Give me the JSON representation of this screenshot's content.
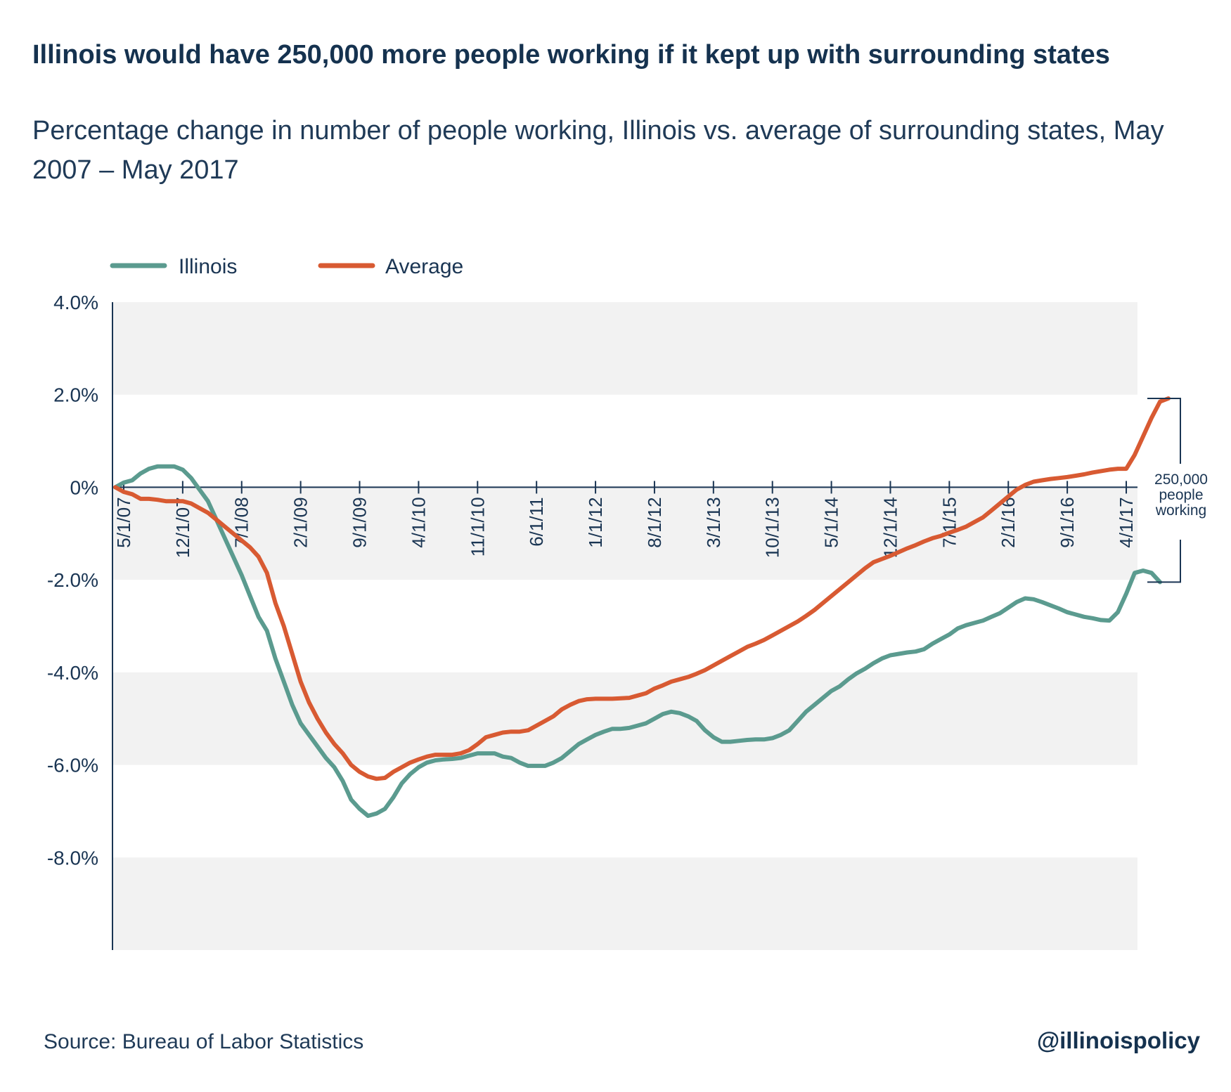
{
  "header": {
    "title": "Illinois would have 250,000 more people working if it kept up with surrounding states",
    "subtitle": "Percentage change in number of people working, Illinois vs. average of surrounding states, May 2007 – May 2017"
  },
  "footer": {
    "source": "Source: Bureau of Labor Statistics",
    "handle": "@illinoispolicy"
  },
  "colors": {
    "illinois": "#5b9b8f",
    "average": "#d85a32",
    "axis": "#1a3553",
    "band": "#f2f2f2"
  },
  "chart_data": {
    "type": "line",
    "title": "Illinois would have 250,000 more people working if it kept up with surrounding states",
    "subtitle": "Percentage change in number of people working, Illinois vs. average of surrounding states, May 2007 – May 2017",
    "xlabel": "",
    "ylabel": "",
    "ylim": [
      -10.0,
      4.0
    ],
    "y_ticks": [
      4.0,
      2.0,
      0.0,
      -2.0,
      -4.0,
      -6.0,
      -8.0
    ],
    "y_tick_labels": [
      "4.0%",
      "2.0%",
      "0%",
      "-2.0%",
      "-4.0%",
      "-6.0%",
      "-8.0%"
    ],
    "x_tick_labels": [
      "5/1/07",
      "12/1/07",
      "7/1/08",
      "2/1/09",
      "9/1/09",
      "4/1/10",
      "11/1/10",
      "6/1/11",
      "1/1/12",
      "8/1/12",
      "3/1/13",
      "10/1/13",
      "5/1/14",
      "12/1/14",
      "7/1/15",
      "2/1/16",
      "9/1/16",
      "4/1/17"
    ],
    "x_start": "4/1/07",
    "x_end": "5/1/17",
    "grid": "alternating horizontal bands",
    "legend": "top-left",
    "series": [
      {
        "name": "Illinois",
        "color": "#5b9b8f",
        "values": [
          0.0,
          0.1,
          0.15,
          0.3,
          0.4,
          0.45,
          0.45,
          0.45,
          0.38,
          0.2,
          -0.05,
          -0.3,
          -0.7,
          -1.1,
          -1.5,
          -1.9,
          -2.35,
          -2.8,
          -3.1,
          -3.7,
          -4.2,
          -4.7,
          -5.1,
          -5.35,
          -5.6,
          -5.85,
          -6.05,
          -6.35,
          -6.75,
          -6.95,
          -7.1,
          -7.05,
          -6.95,
          -6.7,
          -6.4,
          -6.2,
          -6.05,
          -5.95,
          -5.9,
          -5.88,
          -5.87,
          -5.85,
          -5.8,
          -5.75,
          -5.75,
          -5.75,
          -5.82,
          -5.85,
          -5.95,
          -6.02,
          -6.02,
          -6.02,
          -5.95,
          -5.85,
          -5.7,
          -5.55,
          -5.45,
          -5.35,
          -5.28,
          -5.22,
          -5.22,
          -5.2,
          -5.15,
          -5.1,
          -5.0,
          -4.9,
          -4.85,
          -4.88,
          -4.95,
          -5.05,
          -5.25,
          -5.4,
          -5.5,
          -5.5,
          -5.48,
          -5.46,
          -5.45,
          -5.45,
          -5.42,
          -5.35,
          -5.25,
          -5.05,
          -4.85,
          -4.7,
          -4.55,
          -4.4,
          -4.3,
          -4.15,
          -4.02,
          -3.92,
          -3.8,
          -3.7,
          -3.63,
          -3.6,
          -3.57,
          -3.55,
          -3.5,
          -3.38,
          -3.28,
          -3.18,
          -3.05,
          -2.98,
          -2.93,
          -2.88,
          -2.8,
          -2.72,
          -2.6,
          -2.48,
          -2.4,
          -2.42,
          -2.48,
          -2.55,
          -2.62,
          -2.7,
          -2.75,
          -2.8,
          -2.83,
          -2.87,
          -2.88,
          -2.7,
          -2.3,
          -1.85,
          -1.8,
          -1.85,
          -2.05
        ]
      },
      {
        "name": "Average",
        "color": "#d85a32",
        "values": [
          0.0,
          -0.1,
          -0.15,
          -0.25,
          -0.25,
          -0.27,
          -0.3,
          -0.3,
          -0.3,
          -0.35,
          -0.45,
          -0.55,
          -0.7,
          -0.85,
          -1.0,
          -1.15,
          -1.3,
          -1.5,
          -1.85,
          -2.5,
          -3.0,
          -3.6,
          -4.2,
          -4.65,
          -5.0,
          -5.3,
          -5.55,
          -5.75,
          -6.0,
          -6.15,
          -6.25,
          -6.3,
          -6.28,
          -6.15,
          -6.05,
          -5.95,
          -5.88,
          -5.82,
          -5.78,
          -5.78,
          -5.78,
          -5.75,
          -5.68,
          -5.55,
          -5.4,
          -5.35,
          -5.3,
          -5.28,
          -5.28,
          -5.25,
          -5.15,
          -5.05,
          -4.95,
          -4.8,
          -4.7,
          -4.62,
          -4.58,
          -4.57,
          -4.57,
          -4.57,
          -4.56,
          -4.55,
          -4.5,
          -4.45,
          -4.35,
          -4.28,
          -4.2,
          -4.15,
          -4.1,
          -4.03,
          -3.95,
          -3.85,
          -3.75,
          -3.65,
          -3.55,
          -3.45,
          -3.38,
          -3.3,
          -3.2,
          -3.1,
          -3.0,
          -2.9,
          -2.78,
          -2.65,
          -2.5,
          -2.35,
          -2.2,
          -2.05,
          -1.9,
          -1.75,
          -1.62,
          -1.55,
          -1.48,
          -1.4,
          -1.32,
          -1.25,
          -1.17,
          -1.1,
          -1.05,
          -0.98,
          -0.92,
          -0.85,
          -0.75,
          -0.65,
          -0.5,
          -0.35,
          -0.2,
          -0.05,
          0.05,
          0.12,
          0.15,
          0.18,
          0.2,
          0.22,
          0.25,
          0.28,
          0.32,
          0.35,
          0.38,
          0.4,
          0.4,
          0.7,
          1.1,
          1.5,
          1.85,
          1.92
        ]
      }
    ],
    "annotation": {
      "lines": [
        "250,000",
        "people",
        "working"
      ]
    }
  }
}
